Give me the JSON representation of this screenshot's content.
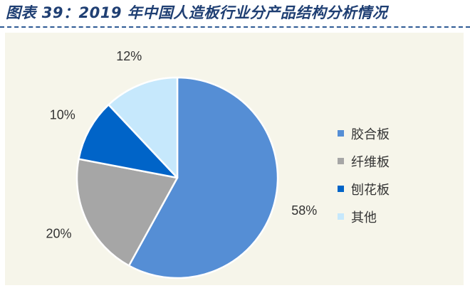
{
  "header": {
    "title": "图表 39：2019 年中国人造板行业分产品结构分析情况"
  },
  "chart_data": {
    "type": "pie",
    "title": "图表 39：2019 年中国人造板行业分产品结构分析情况",
    "categories": [
      "胶合板",
      "纤维板",
      "刨花板",
      "其他"
    ],
    "values": [
      58,
      20,
      10,
      12
    ],
    "labels": [
      "58%",
      "20%",
      "10%",
      "12%"
    ],
    "colors": [
      "#558ed5",
      "#a6a6a6",
      "#0064c8",
      "#c6e8fc"
    ],
    "start_angle_deg": 0,
    "direction": "clockwise",
    "legend_position": "right"
  }
}
